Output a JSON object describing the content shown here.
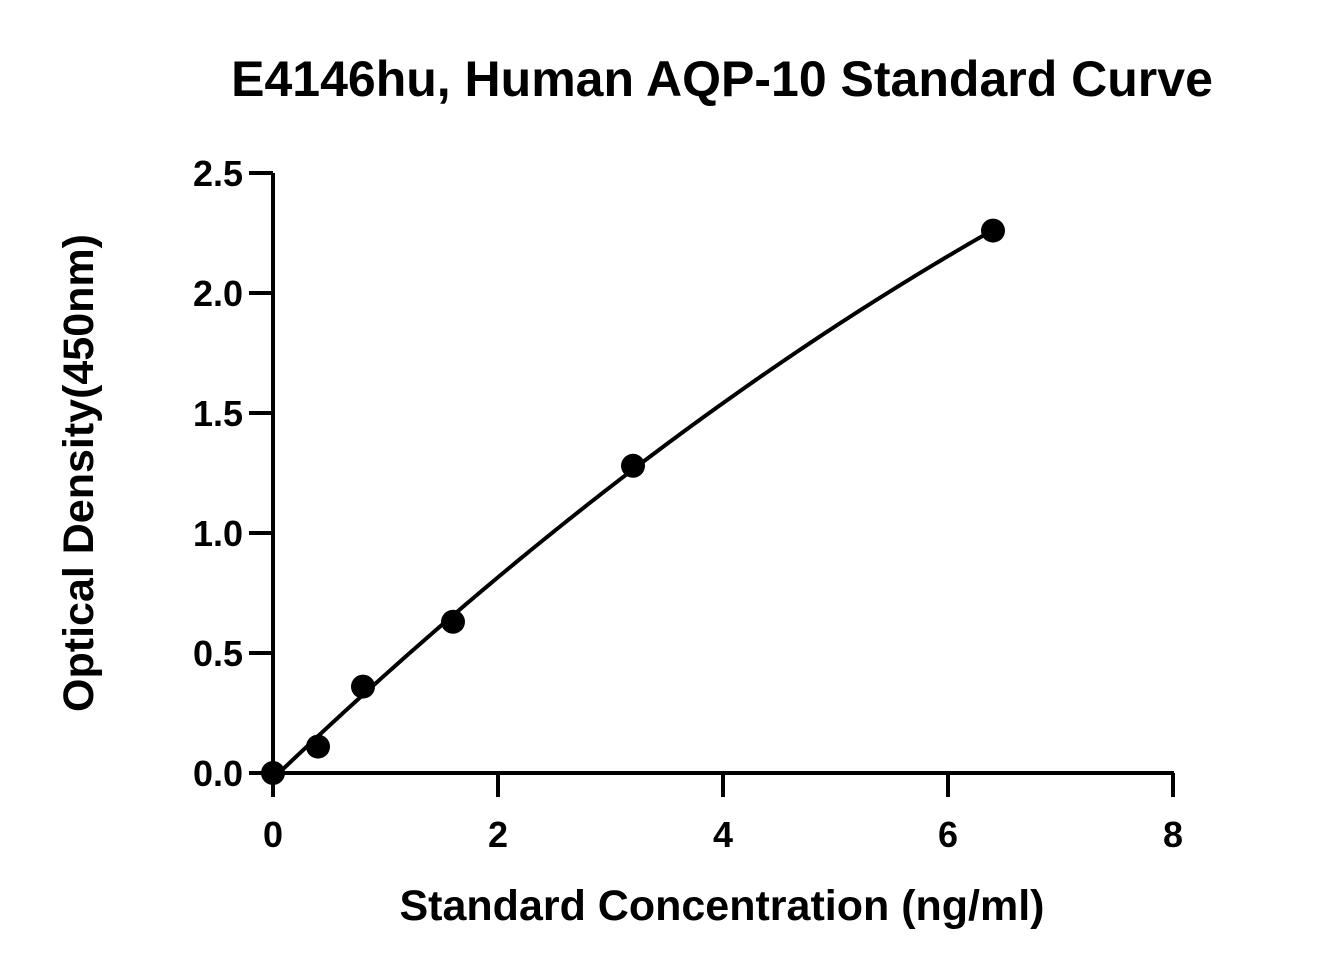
{
  "chart_data": {
    "type": "scatter",
    "title": "E4146hu, Human AQP-10 Standard Curve",
    "xlabel": "Standard Concentration (ng/ml)",
    "ylabel": "Optical Density(450nm)",
    "xlim": [
      0,
      8
    ],
    "ylim": [
      0,
      2.5
    ],
    "x_ticks": [
      "0",
      "2",
      "4",
      "6",
      "8"
    ],
    "y_ticks": [
      "0.0",
      "0.5",
      "1.0",
      "1.5",
      "2.0",
      "2.5"
    ],
    "grid": false,
    "series": [
      {
        "points": [
          {
            "x": 0,
            "y": 0.0
          },
          {
            "x": 0.4,
            "y": 0.11
          },
          {
            "x": 0.8,
            "y": 0.36
          },
          {
            "x": 1.6,
            "y": 0.63
          },
          {
            "x": 3.2,
            "y": 1.28
          },
          {
            "x": 6.4,
            "y": 2.26
          }
        ],
        "fit_curve": true
      }
    ]
  }
}
